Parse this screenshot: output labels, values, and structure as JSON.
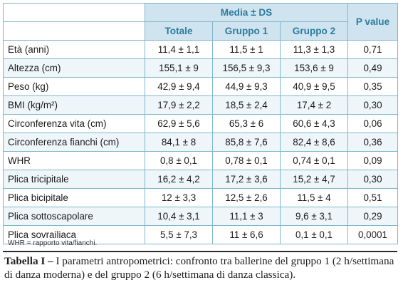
{
  "table": {
    "header_group": "Media ± DS",
    "header_pvalue": "P value",
    "subheaders": [
      "Totale",
      "Gruppo 1",
      "Gruppo 2"
    ],
    "rows": [
      {
        "label": "Età (anni)",
        "totale": "11,4 ± 1,1",
        "g1": "11,5 ± 1",
        "g2": "11,3 ± 1,3",
        "p": "0,71"
      },
      {
        "label": "Altezza (cm)",
        "totale": "155,1 ± 9",
        "g1": "156,5 ± 9,3",
        "g2": "153,6 ± 9",
        "p": "0,49"
      },
      {
        "label": "Peso (kg)",
        "totale": "42,9 ± 9,4",
        "g1": "44,9 ± 9,3",
        "g2": "40,9 ± 9,5",
        "p": "0,35"
      },
      {
        "label": "BMI (kg/m²)",
        "totale": "17,9 ± 2,2",
        "g1": "18,5 ± 2,4",
        "g2": "17,4 ± 2",
        "p": "0,30"
      },
      {
        "label": "Circonferenza vita (cm)",
        "totale": "62,9 ± 5,6",
        "g1": "65,3 ± 6",
        "g2": "60,6 ± 4,3",
        "p": "0,06"
      },
      {
        "label": "Circonferenza fianchi (cm)",
        "totale": "84,1 ± 8",
        "g1": "85,8 ± 7,6",
        "g2": "82,4 ± 8,6",
        "p": "0,36"
      },
      {
        "label": "WHR",
        "totale": "0,8 ± 0,1",
        "g1": "0,78 ± 0,1",
        "g2": "0,74 ± 0,1",
        "p": "0,09"
      },
      {
        "label": "Plica tricipitale",
        "totale": "16,2 ± 4,2",
        "g1": "17,2 ± 3,6",
        "g2": "15,2 ± 4,7",
        "p": "0,30"
      },
      {
        "label": "Plica bicipitale",
        "totale": "12 ± 3,3",
        "g1": "12,5 ± 2,6",
        "g2": "11,5 ± 4",
        "p": "0,51"
      },
      {
        "label": "Plica sottoscapolare",
        "totale": "10,4 ± 3,1",
        "g1": "11,1 ± 3",
        "g2": "9,6 ± 3,1",
        "p": "0,29"
      },
      {
        "label": "Plica sovrailiaca",
        "totale": "5,5 ± 7,3",
        "g1": "11 ± 6,6",
        "g2": "0,1 ± 0,1",
        "p": "0,0001"
      }
    ]
  },
  "footnote": "WHR = rapporto vita/fianchi.",
  "caption": {
    "label": "Tabella I –",
    "text": " I parametri antropometrici: confronto tra ballerine del gruppo 1 (2 h/settimana di danza moderna) e del gruppo 2 (6 h/settimana di danza classica)."
  }
}
